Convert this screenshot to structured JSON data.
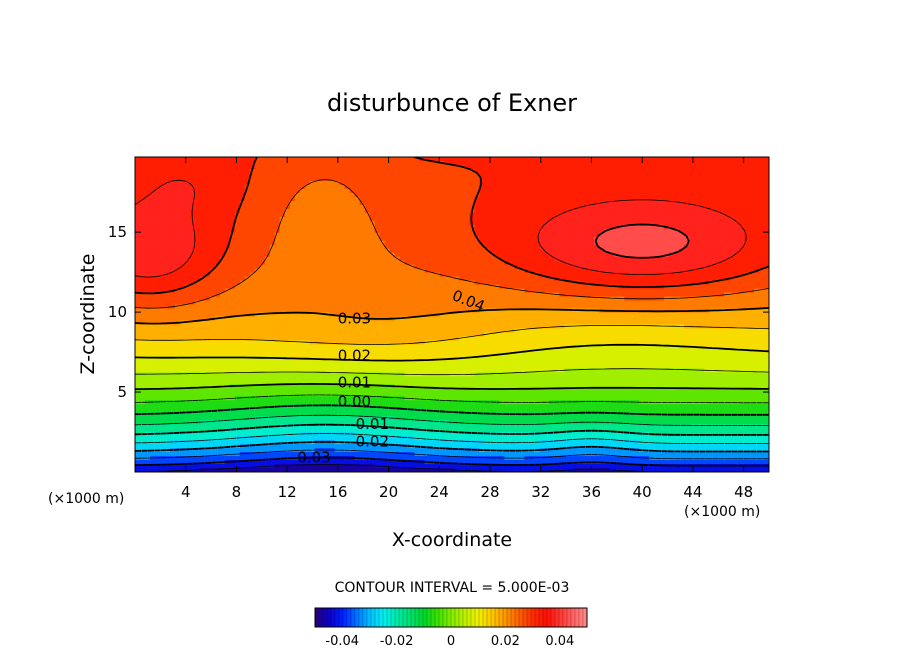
{
  "chart_data": {
    "type": "filled-contour",
    "title": "disturbunce of Exner",
    "xlabel": "X-coordinate",
    "ylabel": "Z-coordinate",
    "x_unit": "(×1000 m)",
    "z_unit": "(×1000 m)",
    "xlim": [
      0,
      50
    ],
    "ylim": [
      0,
      19.7
    ],
    "x_ticks": [
      4,
      8,
      12,
      16,
      20,
      24,
      28,
      32,
      36,
      40,
      44,
      48
    ],
    "y_ticks": [
      5,
      10,
      15
    ],
    "contour_interval_text": "CONTOUR INTERVAL = 5.000E-03",
    "value_range": [
      -0.045,
      0.05
    ],
    "contour_labels": [
      {
        "text": "0.04",
        "x": 26.3,
        "z": 10.7
      },
      {
        "text": "0.03",
        "x": 17.3,
        "z": 9.6
      },
      {
        "text": "0.02",
        "x": 17.3,
        "z": 7.3
      },
      {
        "text": "0.01",
        "x": 17.3,
        "z": 5.6
      },
      {
        "text": "0.00",
        "x": 17.3,
        "z": 4.4
      },
      {
        "text": "-0.01",
        "x": 18.5,
        "z": 3.0
      },
      {
        "text": "-0.02",
        "x": 18.5,
        "z": 1.9
      },
      {
        "text": "-0.03",
        "x": 13.9,
        "z": 0.9
      }
    ],
    "colorbar": {
      "ticks": [
        {
          "label": "-0.04",
          "value": -0.04
        },
        {
          "label": "-0.02",
          "value": -0.02
        },
        {
          "label": "0",
          "value": 0
        },
        {
          "label": "0.02",
          "value": 0.02
        },
        {
          "label": "0.04",
          "value": 0.04
        }
      ],
      "range": [
        -0.05,
        0.05
      ]
    }
  }
}
